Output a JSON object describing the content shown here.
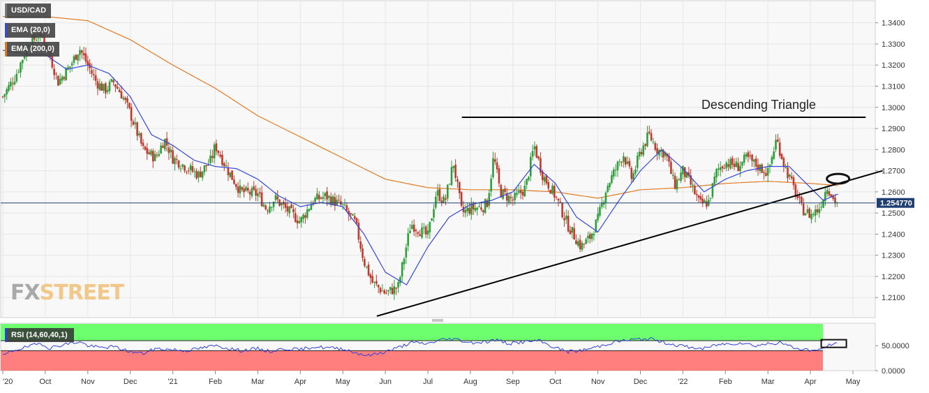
{
  "legend": {
    "symbol": "USD/CAD",
    "ema20": "EMA (20,0)",
    "ema200": "EMA (200,0)",
    "rsi": "RSI (14,60,40,1)"
  },
  "colors": {
    "price_up": "#2e9e3a",
    "price_down": "#c0392b",
    "ema20": "#3448d9",
    "ema200": "#e07a22",
    "rsi_line": "#2f3fd6",
    "rsi_upper_zone": "#6dff6d",
    "rsi_lower_zone": "#ff7f7f",
    "price_tag": "#1f3f73"
  },
  "watermark": {
    "part1": "FX",
    "part2": "STREET"
  },
  "chart_data": [
    {
      "type": "candlestick",
      "title": "USD/CAD",
      "annotation": "Descending Triangle",
      "current_price_label": "1.254770",
      "current_price": 1.25477,
      "ylim": [
        1.2005,
        1.3498
      ],
      "y_ticks": [
        "1.2100",
        "1.2200",
        "1.2300",
        "1.2400",
        "1.2500",
        "1.2600",
        "1.2700",
        "1.2800",
        "1.2900",
        "1.3000",
        "1.3100",
        "1.3200",
        "1.3300",
        "1.3400"
      ],
      "x_ticks": [
        "'20",
        "Oct",
        "Nov",
        "Dec",
        "'21",
        "Feb",
        "Mar",
        "Apr",
        "May",
        "Jun",
        "Jul",
        "Aug",
        "Sep",
        "Oct",
        "Nov",
        "Dec",
        "'22",
        "Feb",
        "Mar",
        "Apr",
        "May"
      ],
      "x_tick_months": [
        0,
        1,
        2,
        3,
        4,
        5,
        6,
        7,
        8,
        9,
        10,
        11,
        12,
        13,
        14,
        15,
        16,
        17,
        18,
        19,
        20
      ],
      "close_anchors": [
        [
          0.0,
          1.305
        ],
        [
          0.3,
          1.315
        ],
        [
          0.6,
          1.33
        ],
        [
          0.9,
          1.335
        ],
        [
          1.1,
          1.325
        ],
        [
          1.3,
          1.312
        ],
        [
          1.6,
          1.32
        ],
        [
          1.8,
          1.328
        ],
        [
          2.0,
          1.32
        ],
        [
          2.2,
          1.312
        ],
        [
          2.4,
          1.308
        ],
        [
          2.6,
          1.312
        ],
        [
          2.8,
          1.306
        ],
        [
          3.0,
          1.297
        ],
        [
          3.3,
          1.28
        ],
        [
          3.6,
          1.276
        ],
        [
          3.8,
          1.285
        ],
        [
          4.0,
          1.276
        ],
        [
          4.3,
          1.272
        ],
        [
          4.6,
          1.268
        ],
        [
          4.9,
          1.275
        ],
        [
          5.0,
          1.282
        ],
        [
          5.3,
          1.27
        ],
        [
          5.6,
          1.26
        ],
        [
          6.0,
          1.259
        ],
        [
          6.2,
          1.252
        ],
        [
          6.4,
          1.257
        ],
        [
          6.6,
          1.253
        ],
        [
          7.0,
          1.246
        ],
        [
          7.3,
          1.256
        ],
        [
          7.6,
          1.258
        ],
        [
          8.0,
          1.253
        ],
        [
          8.3,
          1.245
        ],
        [
          8.5,
          1.227
        ],
        [
          8.7,
          1.217
        ],
        [
          9.0,
          1.212
        ],
        [
          9.3,
          1.215
        ],
        [
          9.6,
          1.245
        ],
        [
          10.0,
          1.239
        ],
        [
          10.2,
          1.26
        ],
        [
          10.4,
          1.255
        ],
        [
          10.6,
          1.274
        ],
        [
          10.8,
          1.25
        ],
        [
          11.0,
          1.252
        ],
        [
          11.3,
          1.253
        ],
        [
          11.4,
          1.255
        ],
        [
          11.55,
          1.277
        ],
        [
          11.7,
          1.26
        ],
        [
          12.0,
          1.256
        ],
        [
          12.3,
          1.262
        ],
        [
          12.5,
          1.282
        ],
        [
          12.7,
          1.268
        ],
        [
          13.0,
          1.258
        ],
        [
          13.3,
          1.244
        ],
        [
          13.6,
          1.234
        ],
        [
          13.8,
          1.238
        ],
        [
          14.0,
          1.247
        ],
        [
          14.2,
          1.262
        ],
        [
          14.4,
          1.27
        ],
        [
          14.6,
          1.278
        ],
        [
          14.8,
          1.266
        ],
        [
          15.0,
          1.279
        ],
        [
          15.2,
          1.287
        ],
        [
          15.4,
          1.28
        ],
        [
          15.6,
          1.278
        ],
        [
          15.8,
          1.263
        ],
        [
          16.0,
          1.27
        ],
        [
          16.2,
          1.263
        ],
        [
          16.4,
          1.254
        ],
        [
          16.6,
          1.255
        ],
        [
          16.8,
          1.27
        ],
        [
          17.0,
          1.274
        ],
        [
          17.3,
          1.272
        ],
        [
          17.5,
          1.276
        ],
        [
          17.7,
          1.273
        ],
        [
          18.0,
          1.269
        ],
        [
          18.2,
          1.285
        ],
        [
          18.4,
          1.272
        ],
        [
          18.6,
          1.262
        ],
        [
          18.8,
          1.252
        ],
        [
          19.0,
          1.249
        ],
        [
          19.2,
          1.252
        ],
        [
          19.4,
          1.263
        ],
        [
          19.55,
          1.256
        ],
        [
          19.65,
          1.2548
        ]
      ],
      "ema20_anchors": [
        [
          0.0,
          1.327
        ],
        [
          0.6,
          1.325
        ],
        [
          1.0,
          1.325
        ],
        [
          1.5,
          1.318
        ],
        [
          2.0,
          1.32
        ],
        [
          2.5,
          1.316
        ],
        [
          3.0,
          1.305
        ],
        [
          3.5,
          1.287
        ],
        [
          4.0,
          1.282
        ],
        [
          4.5,
          1.275
        ],
        [
          5.0,
          1.272
        ],
        [
          5.5,
          1.271
        ],
        [
          6.0,
          1.266
        ],
        [
          6.5,
          1.258
        ],
        [
          7.0,
          1.253
        ],
        [
          7.5,
          1.255
        ],
        [
          8.0,
          1.253
        ],
        [
          8.5,
          1.24
        ],
        [
          9.0,
          1.222
        ],
        [
          9.5,
          1.216
        ],
        [
          10.0,
          1.234
        ],
        [
          10.5,
          1.248
        ],
        [
          11.0,
          1.254
        ],
        [
          11.5,
          1.256
        ],
        [
          12.0,
          1.26
        ],
        [
          12.5,
          1.273
        ],
        [
          13.0,
          1.264
        ],
        [
          13.5,
          1.248
        ],
        [
          14.0,
          1.241
        ],
        [
          14.5,
          1.256
        ],
        [
          15.0,
          1.27
        ],
        [
          15.5,
          1.28
        ],
        [
          16.0,
          1.271
        ],
        [
          16.5,
          1.26
        ],
        [
          17.0,
          1.266
        ],
        [
          17.5,
          1.27
        ],
        [
          18.0,
          1.272
        ],
        [
          18.5,
          1.272
        ],
        [
          19.0,
          1.262
        ],
        [
          19.3,
          1.256
        ],
        [
          19.65,
          1.259
        ]
      ],
      "ema200_anchors": [
        [
          0.0,
          1.343
        ],
        [
          1.0,
          1.343
        ],
        [
          2.0,
          1.341
        ],
        [
          3.0,
          1.332
        ],
        [
          4.0,
          1.32
        ],
        [
          5.0,
          1.309
        ],
        [
          6.0,
          1.296
        ],
        [
          7.0,
          1.286
        ],
        [
          8.0,
          1.276
        ],
        [
          9.0,
          1.266
        ],
        [
          10.0,
          1.262
        ],
        [
          11.0,
          1.261
        ],
        [
          12.0,
          1.261
        ],
        [
          13.0,
          1.26
        ],
        [
          14.0,
          1.257
        ],
        [
          15.0,
          1.261
        ],
        [
          16.0,
          1.262
        ],
        [
          17.0,
          1.264
        ],
        [
          18.0,
          1.265
        ],
        [
          19.0,
          1.264
        ],
        [
          19.65,
          1.263
        ]
      ],
      "trendlines": [
        {
          "name": "resistance",
          "from": [
            10.8,
            1.2953
          ],
          "to": [
            20.3,
            1.2953
          ]
        },
        {
          "name": "support",
          "from": [
            8.8,
            1.2012
          ],
          "to": [
            20.7,
            1.27
          ]
        }
      ],
      "highlight_ellipse_center": [
        19.65,
        1.2662
      ]
    },
    {
      "type": "line",
      "title": "RSI (14,60,40,1)",
      "ylim": [
        0,
        95
      ],
      "y_ticks": [
        "0.0000",
        "50.0000"
      ],
      "upper_band": 60,
      "lower_band": 40,
      "rsi_anchors": [
        [
          0.0,
          30
        ],
        [
          0.3,
          42
        ],
        [
          0.6,
          48
        ],
        [
          0.9,
          55
        ],
        [
          1.1,
          45
        ],
        [
          1.4,
          52
        ],
        [
          1.8,
          58
        ],
        [
          2.0,
          50
        ],
        [
          2.3,
          46
        ],
        [
          2.6,
          48
        ],
        [
          3.0,
          38
        ],
        [
          3.3,
          34
        ],
        [
          3.6,
          44
        ],
        [
          4.0,
          42
        ],
        [
          4.3,
          40
        ],
        [
          4.6,
          44
        ],
        [
          5.0,
          50
        ],
        [
          5.3,
          45
        ],
        [
          5.6,
          40
        ],
        [
          6.0,
          44
        ],
        [
          6.3,
          38
        ],
        [
          6.6,
          44
        ],
        [
          7.0,
          42
        ],
        [
          7.3,
          48
        ],
        [
          7.6,
          46
        ],
        [
          8.0,
          44
        ],
        [
          8.3,
          36
        ],
        [
          8.6,
          30
        ],
        [
          9.0,
          38
        ],
        [
          9.3,
          46
        ],
        [
          9.6,
          56
        ],
        [
          10.0,
          54
        ],
        [
          10.3,
          62
        ],
        [
          10.6,
          64
        ],
        [
          11.0,
          56
        ],
        [
          11.4,
          58
        ],
        [
          11.6,
          62
        ],
        [
          11.9,
          54
        ],
        [
          12.3,
          58
        ],
        [
          12.6,
          60
        ],
        [
          13.0,
          46
        ],
        [
          13.3,
          38
        ],
        [
          13.6,
          40
        ],
        [
          14.0,
          48
        ],
        [
          14.4,
          58
        ],
        [
          14.8,
          62
        ],
        [
          15.2,
          64
        ],
        [
          15.5,
          58
        ],
        [
          15.8,
          52
        ],
        [
          16.2,
          46
        ],
        [
          16.5,
          44
        ],
        [
          16.8,
          52
        ],
        [
          17.1,
          54
        ],
        [
          17.4,
          56
        ],
        [
          17.7,
          50
        ],
        [
          18.0,
          54
        ],
        [
          18.3,
          56
        ],
        [
          18.6,
          46
        ],
        [
          18.9,
          42
        ],
        [
          19.2,
          40
        ],
        [
          19.4,
          50
        ],
        [
          19.55,
          54
        ],
        [
          19.65,
          52
        ]
      ]
    }
  ]
}
